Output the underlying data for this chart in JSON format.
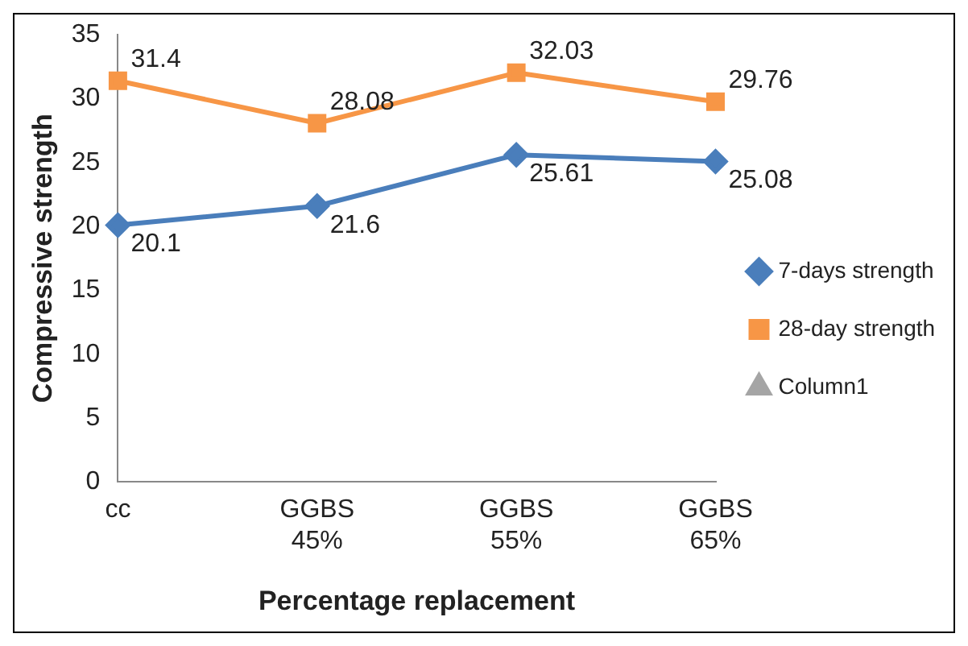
{
  "chart_data": {
    "type": "line",
    "xlabel": "Percentage replacement",
    "ylabel": "Compressive strength",
    "categories": [
      "cc",
      "GGBS 45%",
      "GGBS 55%",
      "GGBS 65%"
    ],
    "series": [
      {
        "name": "7-days strength",
        "color": "#4a7ebb",
        "marker": "diamond",
        "values": [
          20.1,
          21.6,
          25.61,
          25.08
        ]
      },
      {
        "name": "28-day strength",
        "color": "#f79646",
        "marker": "square",
        "values": [
          31.4,
          28.08,
          32.03,
          29.76
        ]
      },
      {
        "name": "Column1",
        "color": "#a5a5a5",
        "marker": "triangle",
        "values": [
          null,
          null,
          null,
          null
        ]
      }
    ],
    "ylim": [
      0,
      35
    ],
    "yticks": [
      0,
      5,
      10,
      15,
      20,
      25,
      30,
      35
    ],
    "grid": false,
    "legend": "right",
    "data_labels": true,
    "line_style": "solid"
  }
}
